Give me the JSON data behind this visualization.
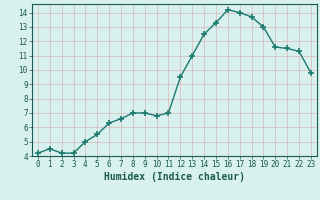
{
  "x": [
    0,
    1,
    2,
    3,
    4,
    5,
    6,
    7,
    8,
    9,
    10,
    11,
    12,
    13,
    14,
    15,
    16,
    17,
    18,
    19,
    20,
    21,
    22,
    23
  ],
  "y": [
    4.2,
    4.5,
    4.2,
    4.2,
    5.0,
    5.5,
    6.3,
    6.6,
    7.0,
    7.0,
    6.8,
    7.0,
    9.5,
    11.0,
    12.5,
    13.3,
    14.2,
    14.0,
    13.7,
    13.0,
    11.6,
    11.5,
    11.3,
    9.8
  ],
  "xlabel": "Humidex (Indice chaleur)",
  "xlim": [
    -0.5,
    23.5
  ],
  "ylim": [
    4,
    14.6
  ],
  "line_color": "#1a7a6e",
  "marker": "+",
  "marker_size": 4,
  "marker_lw": 1.2,
  "line_width": 1.0,
  "bg_color": "#d8f0ee",
  "grid_color": "#c0dbd8",
  "tick_color": "#1a5a50",
  "label_color": "#1a5a50",
  "yticks": [
    4,
    5,
    6,
    7,
    8,
    9,
    10,
    11,
    12,
    13,
    14
  ],
  "xticks": [
    0,
    1,
    2,
    3,
    4,
    5,
    6,
    7,
    8,
    9,
    10,
    11,
    12,
    13,
    14,
    15,
    16,
    17,
    18,
    19,
    20,
    21,
    22,
    23
  ],
  "tick_fontsize": 5.5,
  "xlabel_fontsize": 7.0
}
